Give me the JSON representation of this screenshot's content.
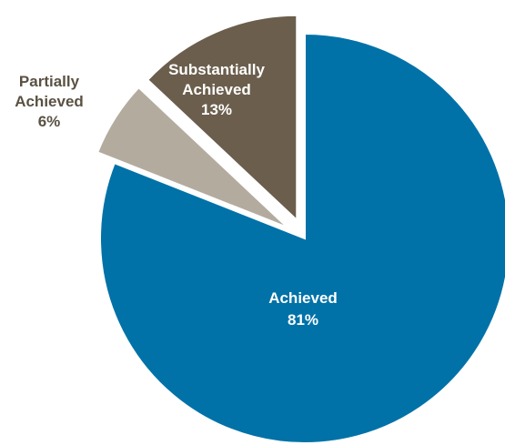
{
  "chart_data": {
    "type": "pie",
    "slices": [
      {
        "name": "Achieved",
        "label": "Achieved",
        "value": 81,
        "value_label": "81%",
        "color": "#0072A8",
        "text_color": "#ffffff",
        "exploded": false
      },
      {
        "name": "Partially Achieved",
        "label": "Partially\nAchieved",
        "value": 6,
        "value_label": "6%",
        "color": "#B4AB9F",
        "text_color": "#5A5142",
        "exploded": true
      },
      {
        "name": "Substantially Achieved",
        "label": "Substantially\nAchieved",
        "value": 13,
        "value_label": "13%",
        "color": "#6B5E4C",
        "text_color": "#ffffff",
        "exploded": true
      }
    ],
    "start_angle_deg": 0,
    "direction": "clockwise",
    "legend": "none",
    "title": ""
  }
}
